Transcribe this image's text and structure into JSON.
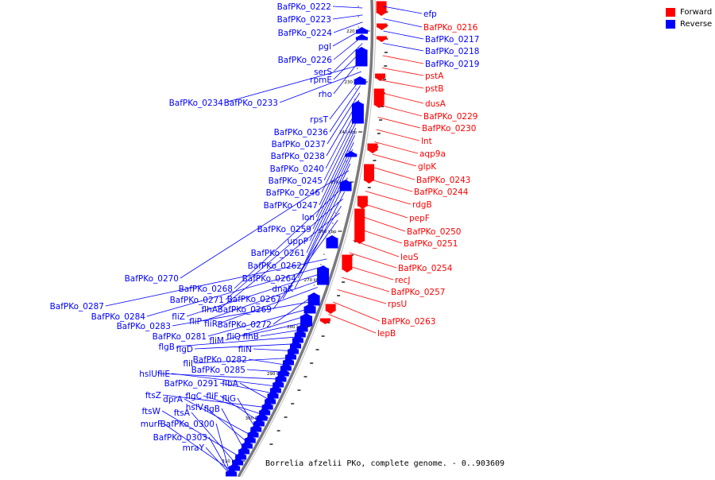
{
  "caption": "Borrelia afzelii PKo, complete genome. - 0..903609",
  "legend": [
    {
      "label": "Forward",
      "color": "#ff0000"
    },
    {
      "label": "Reverse",
      "color": "#0000ff"
    }
  ],
  "colors": {
    "forward": "#ff0000",
    "reverse": "#0000ff",
    "backbone": "#7a7a7a"
  },
  "ticks": [
    "220 kbp",
    "230 kbp",
    "240 kbp",
    "250 kbp",
    "260 kbp",
    "270 kbp",
    "280 kbp",
    "290 kbp",
    "300 kbp",
    "310 kbp"
  ],
  "reverse_labels": [
    "BafPKo_0222",
    "BafPKo_0223",
    "BafPKo_0224",
    "pgl",
    "BafPKo_0226",
    "serS",
    "rpmE",
    "rho",
    "BafPKo_0234",
    "BafPKo_0233",
    "rpsT",
    "BafPKo_0236",
    "BafPKo_0237",
    "BafPKo_0238",
    "BafPKo_0240",
    "BafPKo_0245",
    "BafPKo_0246",
    "BafPKo_0247",
    "lon",
    "BafPKo_0259",
    "uppP",
    "BafPKo_0261",
    "BafPKo_0262",
    "BafPKo_0270",
    "BafPKo_0264",
    "BafPKo_0268",
    "dnaK",
    "BafPKo_0271",
    "BafPKo_0267",
    "flhA",
    "BafPKo_0269",
    "BafPKo_0287",
    "BafPKo_0284",
    "fliZ",
    "fliP",
    "fliR",
    "BafPKo_0272",
    "BafPKo_0283",
    "BafPKo_0281",
    "fliM",
    "fliQ",
    "flhB",
    "flgB",
    "flgD",
    "fliN",
    "fliI",
    "BafPKo_0282",
    "BafPKo_0285",
    "hslU",
    "fliE",
    "BafPKo_0291",
    "flbA",
    "ftsZ",
    "flgC",
    "fliF",
    "fliG",
    "dprA",
    "hslV",
    "flgB",
    "ftsW",
    "ftsA",
    "murF",
    "BafPKo_0300",
    "BafPKo_0303",
    "mraY"
  ],
  "forward_labels": [
    "efp",
    "BafPKo_0216",
    "BafPKo_0217",
    "BafPKo_0218",
    "BafPKo_0219",
    "pstA",
    "pstB",
    "dusA",
    "BafPKo_0229",
    "BafPKo_0230",
    "lnt",
    "aqp9a",
    "glpK",
    "BafPKo_0243",
    "BafPKo_0244",
    "rdgB",
    "pepF",
    "BafPKo_0250",
    "BafPKo_0251",
    "leuS",
    "BafPKo_0254",
    "recJ",
    "BafPKo_0257",
    "rpsU",
    "BafPKo_0263",
    "lepB"
  ]
}
